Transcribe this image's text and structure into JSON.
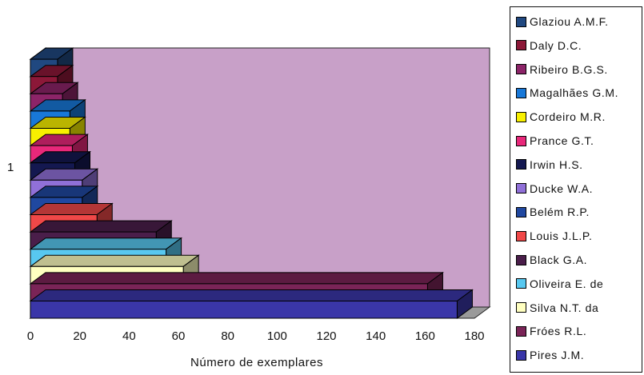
{
  "chart_data": {
    "type": "bar",
    "orientation": "horizontal",
    "three_d": true,
    "categories": [
      "1"
    ],
    "xlabel": "Número de exemplares",
    "xlim": [
      0,
      180
    ],
    "xticks": [
      0,
      20,
      40,
      60,
      80,
      100,
      120,
      140,
      160,
      180
    ],
    "legend_position": "right",
    "background_color": "#C8A0C8",
    "series": [
      {
        "name": "Pires J.M.",
        "value": 173,
        "color": "#3A36A8"
      },
      {
        "name": "Fróes R.L.",
        "value": 161,
        "color": "#7A2457"
      },
      {
        "name": "Silva N.T. da",
        "value": 62,
        "color": "#FFFFC0"
      },
      {
        "name": "Oliveira E. de",
        "value": 55,
        "color": "#58C8F0"
      },
      {
        "name": "Black G.A.",
        "value": 51,
        "color": "#4A1E4A"
      },
      {
        "name": "Louis J.L.P.",
        "value": 27,
        "color": "#F04848"
      },
      {
        "name": "Belém R.P.",
        "value": 21,
        "color": "#2048A0"
      },
      {
        "name": "Ducke W.A.",
        "value": 21,
        "color": "#9070D8"
      },
      {
        "name": "Irwin H.S.",
        "value": 18,
        "color": "#141850"
      },
      {
        "name": "Prance G.T.",
        "value": 17,
        "color": "#E8287A"
      },
      {
        "name": "Cordeiro M.R.",
        "value": 16,
        "color": "#F8F000"
      },
      {
        "name": "Magalhães G.M.",
        "value": 16,
        "color": "#1878D8"
      },
      {
        "name": "Ribeiro B.G.S.",
        "value": 13,
        "color": "#8C2468"
      },
      {
        "name": "Daly D.C.",
        "value": 11,
        "color": "#8C1838"
      },
      {
        "name": "Glaziou A.M.F.",
        "value": 11,
        "color": "#204880"
      }
    ]
  }
}
